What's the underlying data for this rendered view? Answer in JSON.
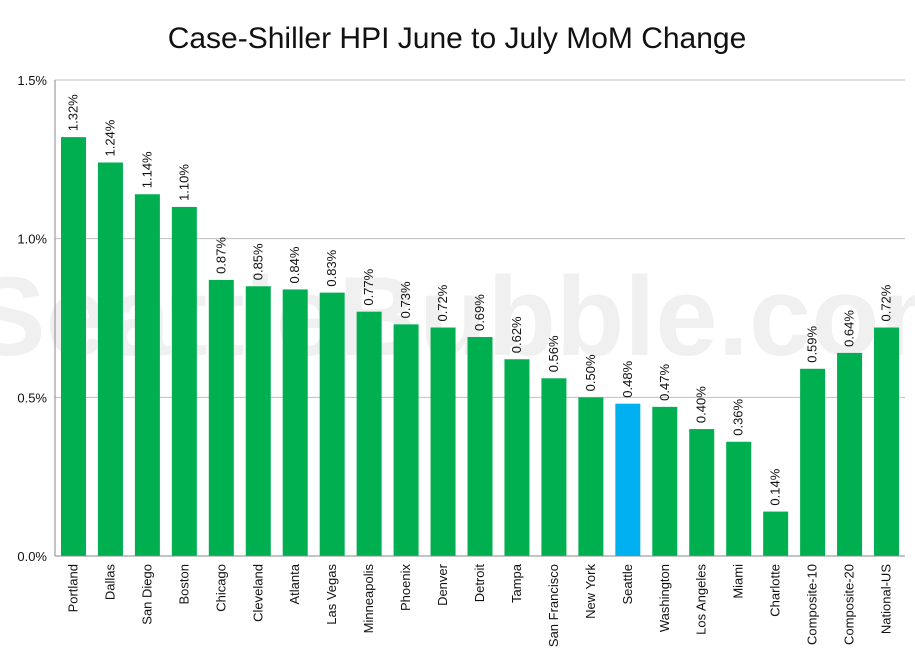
{
  "watermark": "SeattleBubble.com",
  "colors": {
    "bar": "#00b050",
    "highlight": "#00b0f0",
    "grid": "#bfbfbf",
    "axis": "#888888"
  },
  "chart_data": {
    "type": "bar",
    "title": "Case-Shiller HPI June to July MoM Change",
    "xlabel": "",
    "ylabel": "",
    "ylim": [
      0,
      1.5
    ],
    "yticks": [
      0,
      0.5,
      1.0,
      1.5
    ],
    "ytick_labels": [
      "0.0%",
      "0.5%",
      "1.0%",
      "1.5%"
    ],
    "grid": true,
    "legend": "none",
    "highlight": "Seattle",
    "categories": [
      "Portland",
      "Dallas",
      "San Diego",
      "Boston",
      "Chicago",
      "Cleveland",
      "Atlanta",
      "Las Vegas",
      "Minneapolis",
      "Phoenix",
      "Denver",
      "Detroit",
      "Tampa",
      "San Francisco",
      "New York",
      "Seattle",
      "Washington",
      "Los Angeles",
      "Miami",
      "Charlotte",
      "Composite-10",
      "Composite-20",
      "National-US"
    ],
    "values": [
      1.32,
      1.24,
      1.14,
      1.1,
      0.87,
      0.85,
      0.84,
      0.83,
      0.77,
      0.73,
      0.72,
      0.69,
      0.62,
      0.56,
      0.5,
      0.48,
      0.47,
      0.4,
      0.36,
      0.14,
      0.59,
      0.64,
      0.72
    ],
    "value_labels": [
      "1.32%",
      "1.24%",
      "1.14%",
      "1.10%",
      "0.87%",
      "0.85%",
      "0.84%",
      "0.83%",
      "0.77%",
      "0.73%",
      "0.72%",
      "0.69%",
      "0.62%",
      "0.56%",
      "0.50%",
      "0.48%",
      "0.47%",
      "0.40%",
      "0.36%",
      "0.14%",
      "0.59%",
      "0.64%",
      "0.72%"
    ]
  }
}
